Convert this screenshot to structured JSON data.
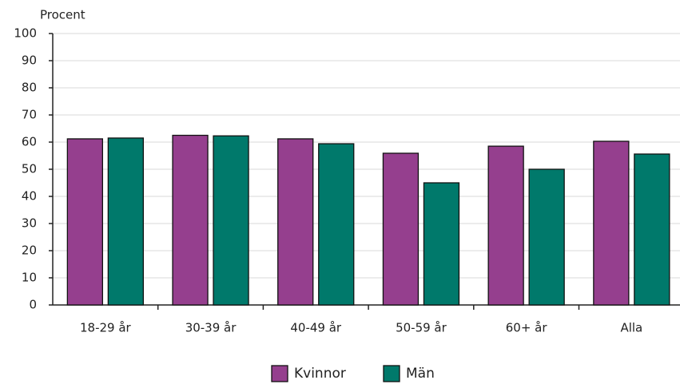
{
  "chart_data": {
    "type": "bar",
    "y_label": "Procent",
    "categories": [
      "18-29 år",
      "30-39 år",
      "40-49 år",
      "50-59 år",
      "60+ år",
      "Alla"
    ],
    "series": [
      {
        "name": "Kvinnor",
        "color": "#953f8e",
        "values": [
          61.2,
          62.5,
          61.2,
          55.9,
          58.5,
          60.3
        ]
      },
      {
        "name": "Män",
        "color": "#00796b",
        "values": [
          61.5,
          62.3,
          59.4,
          45.0,
          50.0,
          55.6
        ]
      }
    ],
    "ylim": [
      0,
      100
    ],
    "yticks": [
      0,
      10,
      20,
      30,
      40,
      50,
      60,
      70,
      80,
      90,
      100
    ],
    "grid": true,
    "legend": "bottom"
  }
}
